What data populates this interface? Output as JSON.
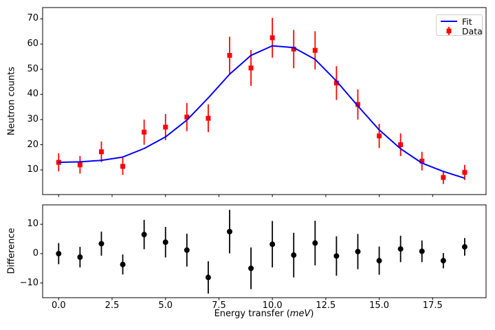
{
  "figure": {
    "background": "#ffffff",
    "frame_color": "#000000",
    "xlabel_parts": {
      "pre": "Energy transfer (",
      "em": "meV",
      "post": ")"
    }
  },
  "chart_data": [
    {
      "type": "line",
      "title": "",
      "xlabel": "",
      "ylabel": "Neutron counts",
      "x": [
        0,
        1,
        2,
        3,
        4,
        5,
        6,
        7,
        8,
        9,
        10,
        11,
        12,
        13,
        14,
        15,
        16,
        17,
        18,
        19
      ],
      "series": [
        {
          "name": "Fit",
          "style": "line",
          "color": "#0000ff",
          "values": [
            13.0,
            13.2,
            13.8,
            15.1,
            18.5,
            23.1,
            29.8,
            38.6,
            48.0,
            55.5,
            59.3,
            58.6,
            53.9,
            45.3,
            35.4,
            25.9,
            18.4,
            12.7,
            9.4,
            6.7
          ]
        },
        {
          "name": "Data",
          "style": "scatter-errorbar",
          "marker": "square",
          "color": "#ff0000",
          "values": [
            13.0,
            12.0,
            17.2,
            11.4,
            25.0,
            27.0,
            31.0,
            30.5,
            55.5,
            50.5,
            62.5,
            58.0,
            57.5,
            44.5,
            36.0,
            23.5,
            20.0,
            13.5,
            7.0,
            9.0
          ],
          "errors": [
            3.6,
            3.5,
            4.1,
            3.4,
            5.0,
            5.2,
            5.6,
            5.5,
            7.4,
            7.1,
            7.9,
            7.6,
            7.6,
            6.7,
            6.0,
            4.8,
            4.5,
            3.7,
            2.6,
            3.0
          ]
        }
      ],
      "xlim": [
        -0.75,
        20.0
      ],
      "ylim": [
        0.2,
        74.5
      ],
      "yticks": [
        10,
        20,
        30,
        40,
        50,
        60,
        70
      ],
      "ytick_labels": [
        "10",
        "20",
        "30",
        "40",
        "50",
        "60",
        "70"
      ],
      "xticks": [
        0,
        2.5,
        5,
        7.5,
        10,
        12.5,
        15,
        17.5
      ],
      "xtick_labels_visible": false,
      "grid": false,
      "legend_position": "upper right"
    },
    {
      "type": "scatter",
      "title": "",
      "xlabel": "Energy transfer (meV)",
      "ylabel": "Difference",
      "x": [
        0,
        1,
        2,
        3,
        4,
        5,
        6,
        7,
        8,
        9,
        10,
        11,
        12,
        13,
        14,
        15,
        16,
        17,
        18,
        19
      ],
      "series": [
        {
          "name": "Difference",
          "style": "scatter-errorbar",
          "marker": "circle",
          "color": "#000000",
          "values": [
            0,
            -1.2,
            3.4,
            -3.7,
            6.5,
            3.9,
            1.2,
            -8.1,
            7.5,
            -5.0,
            3.2,
            -0.5,
            3.6,
            -0.8,
            0.7,
            -2.4,
            1.6,
            0.8,
            -2.4,
            2.3
          ],
          "errors": [
            3.6,
            3.5,
            4.1,
            3.4,
            5.0,
            5.2,
            5.6,
            5.5,
            7.4,
            7.1,
            7.9,
            7.6,
            7.6,
            6.7,
            6.0,
            4.8,
            4.5,
            3.7,
            2.6,
            3.0
          ]
        }
      ],
      "xlim": [
        -0.75,
        20.0
      ],
      "ylim": [
        -15.0,
        16.6
      ],
      "yticks": [
        -10,
        0,
        10
      ],
      "ytick_labels": [
        "−10",
        "0",
        "10"
      ],
      "xticks": [
        0,
        2.5,
        5,
        7.5,
        10,
        12.5,
        15,
        17.5
      ],
      "xtick_labels": [
        "0.0",
        "2.5",
        "5.0",
        "7.5",
        "10.0",
        "12.5",
        "15.0",
        "17.5"
      ],
      "grid": false
    }
  ]
}
